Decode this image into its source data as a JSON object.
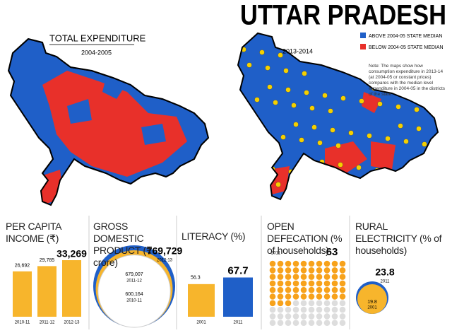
{
  "title": "UTTAR PRADESH",
  "maps": [
    {
      "heading": "TOTAL EXPENDITURE",
      "year": "2004-2005"
    },
    {
      "year": "2013-2014"
    }
  ],
  "legend": [
    {
      "label": "ABOVE 2004-05 STATE MEDIAN",
      "color": "#1f5fc8"
    },
    {
      "label": "BELOW 2004-05 STATE MEDIAN",
      "color": "#e8302a"
    }
  ],
  "note": "Note: The maps show how consumption expenditure in 2013-14 (at 2004-05 or constant prices) compares with the median level expenditure in 2004-05 in the districts of the state.",
  "panels": [
    {
      "title": "PER CAPITA INCOME (₹)",
      "categories": [
        "2010-11",
        "2011-12",
        "2012-13"
      ],
      "values": [
        26692,
        29785,
        33269
      ],
      "value_labels": [
        "26,692",
        "29,785",
        "33,269"
      ],
      "color": "#f7b52c"
    },
    {
      "title": "GROSS DOMESTIC PRODUCT (₹ crore)",
      "categories": [
        "2010-11",
        "2011-12",
        "2012-13"
      ],
      "values": [
        600164,
        679007,
        769729
      ],
      "value_labels": [
        "600,164",
        "679,007",
        "769,729"
      ],
      "colors": [
        "#ffffff",
        "#f7b52c",
        "#1f5fc8"
      ]
    },
    {
      "title": "LITERACY (%)",
      "categories": [
        "2001",
        "2011"
      ],
      "values": [
        56.3,
        67.7
      ],
      "colors": [
        "#f7b52c",
        "#1f5fc8"
      ]
    },
    {
      "title": "OPEN DEFECATION (% of households)",
      "categories": [
        "2011"
      ],
      "values": [
        63
      ],
      "color": "#f7a21b"
    },
    {
      "title": "RURAL ELECTRICITY (% of households)",
      "categories": [
        "2001",
        "2011"
      ],
      "values": [
        19.8,
        23.8
      ],
      "colors": [
        "#f7b52c",
        "#1f5fc8"
      ]
    }
  ]
}
